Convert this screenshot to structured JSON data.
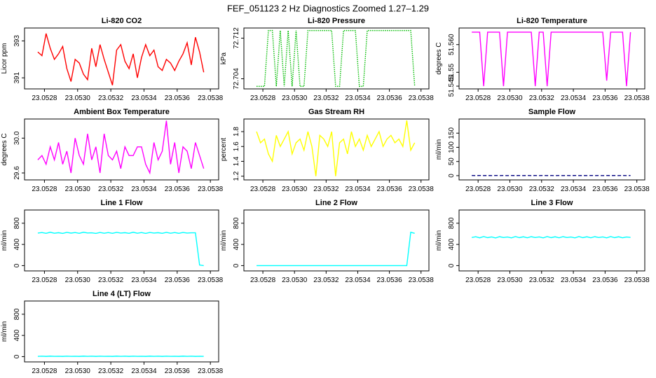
{
  "title": "FEF_051123  2 Hz Diagnostics Zoomed 1.27–1.29",
  "chart_data": [
    {
      "type": "line",
      "title": "Li-820 CO2",
      "y_label": "Licor ppm",
      "color": "#ff0000",
      "x": [
        23.05276,
        23.052785,
        23.05281,
        23.052835,
        23.05286,
        23.052885,
        23.05291,
        23.052935,
        23.05296,
        23.052985,
        23.05301,
        23.053035,
        23.05306,
        23.053085,
        23.05311,
        23.053135,
        23.05316,
        23.053185,
        23.05321,
        23.053235,
        23.05326,
        23.053285,
        23.05331,
        23.053335,
        23.05336,
        23.053385,
        23.05341,
        23.053435,
        23.05346,
        23.053485,
        23.05351,
        23.053535,
        23.05356,
        23.053585,
        23.05361,
        23.053635,
        23.05366,
        23.053685,
        23.05371,
        23.053735,
        23.05376
      ],
      "values": [
        392.4,
        392.2,
        393.4,
        392.6,
        392.0,
        392.3,
        392.7,
        391.5,
        390.8,
        392.0,
        391.8,
        391.2,
        390.9,
        392.6,
        391.6,
        392.8,
        392.0,
        391.3,
        390.6,
        392.5,
        392.8,
        391.9,
        391.5,
        392.3,
        391.0,
        392.1,
        392.8,
        392.2,
        392.5,
        391.6,
        391.4,
        392.0,
        391.8,
        391.4,
        391.9,
        392.3,
        392.9,
        391.7,
        393.2,
        392.4,
        391.3
      ],
      "xlim": [
        23.05268,
        23.05385
      ],
      "ylim": [
        390.4,
        393.7
      ],
      "xticks": [
        23.0528,
        {
          "value": 23.053,
          "label": "23.0530"
        },
        23.0532,
        23.0534,
        23.0536,
        23.0538
      ],
      "yticks": [
        391,
        393
      ]
    },
    {
      "type": "line",
      "title": "Li-820 Pressure",
      "y_label": "kPa",
      "color": "#00bb00",
      "linestyle": "dotted",
      "x": [
        23.05276,
        23.052785,
        23.05281,
        23.052835,
        23.05286,
        23.052885,
        23.05291,
        23.052935,
        23.05296,
        23.052985,
        23.05301,
        23.053035,
        23.05306,
        23.053085,
        23.05311,
        23.053135,
        23.05316,
        23.053185,
        23.05321,
        23.053235,
        23.05326,
        23.053285,
        23.05331,
        23.053335,
        23.05336,
        23.053385,
        23.05341,
        23.053435,
        23.05346,
        23.053485,
        23.05351,
        23.053535,
        23.05356,
        23.053585,
        23.05361,
        23.053635,
        23.05366,
        23.053685,
        23.05371,
        23.053735,
        23.05376
      ],
      "values": [
        72.7025,
        72.7025,
        72.7025,
        72.7135,
        72.7135,
        72.7025,
        72.7135,
        72.7025,
        72.7135,
        72.7025,
        72.7135,
        72.7025,
        72.7025,
        72.7135,
        72.7135,
        72.7135,
        72.7135,
        72.7135,
        72.7135,
        72.7135,
        72.7025,
        72.7025,
        72.7135,
        72.7135,
        72.7135,
        72.7135,
        72.7025,
        72.7025,
        72.7135,
        72.7135,
        72.7135,
        72.7135,
        72.7135,
        72.7135,
        72.7135,
        72.7135,
        72.7135,
        72.7135,
        72.7135,
        72.7135,
        72.7025
      ],
      "xlim": [
        23.05268,
        23.05385
      ],
      "ylim": [
        72.702,
        72.714
      ],
      "xticks": [
        23.0528,
        {
          "value": 23.053,
          "label": "23.0530"
        },
        23.0532,
        23.0534,
        23.0536,
        23.0538
      ],
      "yticks": [
        72.704,
        72.712
      ]
    },
    {
      "type": "line",
      "title": "Li-820 Temperature",
      "y_label": "degrees C",
      "color": "#ff00ff",
      "x": [
        23.05276,
        23.052785,
        23.05281,
        23.052835,
        23.05286,
        23.052885,
        23.05291,
        23.052935,
        23.05296,
        23.052985,
        23.05301,
        23.053035,
        23.05306,
        23.053085,
        23.05311,
        23.053135,
        23.05316,
        23.053185,
        23.05321,
        23.053235,
        23.05326,
        23.053285,
        23.05331,
        23.053335,
        23.05336,
        23.053385,
        23.05341,
        23.053435,
        23.05346,
        23.053485,
        23.05351,
        23.053535,
        23.05356,
        23.053585,
        23.05361,
        23.053635,
        23.05366,
        23.053685,
        23.05371,
        23.053735,
        23.05376
      ],
      "values": [
        51.5645,
        51.5645,
        51.5645,
        51.545,
        51.5645,
        51.5645,
        51.5645,
        51.5645,
        51.545,
        51.5645,
        51.5645,
        51.5645,
        51.5645,
        51.5645,
        51.5645,
        51.5645,
        51.545,
        51.5645,
        51.5645,
        51.545,
        51.5645,
        51.5645,
        51.5645,
        51.5645,
        51.5645,
        51.5645,
        51.5645,
        51.5645,
        51.5645,
        51.5645,
        51.5645,
        51.5645,
        51.5645,
        51.5645,
        51.547,
        51.5645,
        51.5645,
        51.5645,
        51.5645,
        51.545,
        51.5645
      ],
      "xlim": [
        23.05268,
        23.05385
      ],
      "ylim": [
        51.544,
        51.566
      ],
      "xticks": [
        23.0528,
        {
          "value": 23.053,
          "label": "23.0530"
        },
        23.0532,
        23.0534,
        23.0536,
        23.0538
      ],
      "yticks": [
        51.545,
        51.55,
        {
          "value": 51.56,
          "label": "51.560"
        }
      ]
    },
    {
      "type": "line",
      "title": "Ambient Box Temperature",
      "y_label": "degrees C",
      "color": "#ff00ff",
      "x": [
        23.05276,
        23.052785,
        23.05281,
        23.052835,
        23.05286,
        23.052885,
        23.05291,
        23.052935,
        23.05296,
        23.052985,
        23.05301,
        23.053035,
        23.05306,
        23.053085,
        23.05311,
        23.053135,
        23.05316,
        23.053185,
        23.05321,
        23.053235,
        23.05326,
        23.053285,
        23.05331,
        23.053335,
        23.05336,
        23.053385,
        23.05341,
        23.053435,
        23.05346,
        23.053485,
        23.05351,
        23.053535,
        23.05356,
        23.053585,
        23.05361,
        23.053635,
        23.05366,
        23.053685,
        23.05371,
        23.053735,
        23.05376
      ],
      "values": [
        29.75,
        29.8,
        29.7,
        29.9,
        29.75,
        29.95,
        29.7,
        29.85,
        29.6,
        30.0,
        29.8,
        29.7,
        30.05,
        29.75,
        29.9,
        29.6,
        30.05,
        29.8,
        29.75,
        29.85,
        29.65,
        29.9,
        29.8,
        29.8,
        29.9,
        29.9,
        29.7,
        29.6,
        29.95,
        29.75,
        29.85,
        30.2,
        29.7,
        29.95,
        29.6,
        29.9,
        29.85,
        29.65,
        29.95,
        29.8,
        29.65
      ],
      "xlim": [
        23.05268,
        23.05385
      ],
      "ylim": [
        29.52,
        30.22
      ],
      "xticks": [
        23.0528,
        {
          "value": 23.053,
          "label": "23.0530"
        },
        23.0532,
        23.0534,
        23.0536,
        23.0538
      ],
      "yticks": [
        29.6,
        {
          "value": 30,
          "label": "30.0"
        }
      ]
    },
    {
      "type": "line",
      "title": "Gas Stream RH",
      "y_label": "percent",
      "color": "#ffff00",
      "x": [
        23.05276,
        23.052785,
        23.05281,
        23.052835,
        23.05286,
        23.052885,
        23.05291,
        23.052935,
        23.05296,
        23.052985,
        23.05301,
        23.053035,
        23.05306,
        23.053085,
        23.05311,
        23.053135,
        23.05316,
        23.053185,
        23.05321,
        23.053235,
        23.05326,
        23.053285,
        23.05331,
        23.053335,
        23.05336,
        23.053385,
        23.05341,
        23.053435,
        23.05346,
        23.053485,
        23.05351,
        23.053535,
        23.05356,
        23.053585,
        23.05361,
        23.053635,
        23.05366,
        23.053685,
        23.05371,
        23.053735,
        23.05376
      ],
      "values": [
        1.8,
        1.65,
        1.7,
        1.5,
        1.4,
        1.75,
        1.6,
        1.7,
        1.8,
        1.5,
        1.65,
        1.7,
        1.55,
        1.8,
        1.6,
        1.2,
        1.75,
        1.7,
        1.6,
        1.8,
        1.2,
        1.65,
        1.7,
        1.5,
        1.8,
        1.6,
        1.7,
        1.55,
        1.75,
        1.6,
        1.7,
        1.8,
        1.6,
        1.7,
        1.75,
        1.65,
        1.7,
        1.6,
        1.95,
        1.55,
        1.65
      ],
      "xlim": [
        23.05268,
        23.05385
      ],
      "ylim": [
        1.15,
        1.97
      ],
      "xticks": [
        23.0528,
        {
          "value": 23.053,
          "label": "23.0530"
        },
        23.0532,
        23.0534,
        23.0536,
        23.0538
      ],
      "yticks": [
        1.2,
        1.4,
        1.6,
        1.8
      ]
    },
    {
      "type": "line",
      "title": "Sample Flow",
      "y_label": "ml/min",
      "color": "#000080",
      "linestyle": "dashed",
      "x": [
        23.05276,
        23.052785,
        23.05281,
        23.052835,
        23.05286,
        23.052885,
        23.05291,
        23.052935,
        23.05296,
        23.052985,
        23.05301,
        23.053035,
        23.05306,
        23.053085,
        23.05311,
        23.053135,
        23.05316,
        23.053185,
        23.05321,
        23.053235,
        23.05326,
        23.053285,
        23.05331,
        23.053335,
        23.05336,
        23.053385,
        23.05341,
        23.053435,
        23.05346,
        23.053485,
        23.05351,
        23.053535,
        23.05356,
        23.053585,
        23.05361,
        23.053635,
        23.05366,
        23.053685,
        23.05371,
        23.053735,
        23.05376
      ],
      "values": [
        0.5,
        0.3,
        0.6,
        0.4,
        0.5,
        0.3,
        0.6,
        0.4,
        0.5,
        0.3,
        0.6,
        0.4,
        0.5,
        0.3,
        0.6,
        0.4,
        0.5,
        0.3,
        0.6,
        0.4,
        0.5,
        0.3,
        0.6,
        0.4,
        0.5,
        0.3,
        0.6,
        0.4,
        0.5,
        0.3,
        0.6,
        0.4,
        0.5,
        0.3,
        0.6,
        0.4,
        0.5,
        0.3,
        0.6,
        0.4,
        0.5
      ],
      "xlim": [
        23.05268,
        23.05385
      ],
      "ylim": [
        -15,
        200
      ],
      "xticks": [
        23.0528,
        {
          "value": 23.053,
          "label": "23.0530"
        },
        23.0532,
        23.0534,
        23.0536,
        23.0538
      ],
      "yticks": [
        0,
        50,
        100,
        150
      ]
    },
    {
      "type": "line",
      "title": "Line 1 Flow",
      "y_label": "ml/min",
      "color": "#00ffff",
      "x": [
        23.05276,
        23.052785,
        23.05281,
        23.052835,
        23.05286,
        23.052885,
        23.05291,
        23.052935,
        23.05296,
        23.052985,
        23.05301,
        23.053035,
        23.05306,
        23.053085,
        23.05311,
        23.053135,
        23.05316,
        23.053185,
        23.05321,
        23.053235,
        23.05326,
        23.053285,
        23.05331,
        23.053335,
        23.05336,
        23.053385,
        23.05341,
        23.053435,
        23.05346,
        23.053485,
        23.05351,
        23.053535,
        23.05356,
        23.053585,
        23.05361,
        23.053635,
        23.05366,
        23.053685,
        23.05371,
        23.053735,
        23.05376
      ],
      "values": [
        615,
        625,
        610,
        630,
        612,
        622,
        608,
        628,
        614,
        624,
        610,
        630,
        616,
        620,
        608,
        626,
        612,
        624,
        610,
        628,
        614,
        622,
        610,
        630,
        612,
        624,
        608,
        626,
        614,
        622,
        610,
        628,
        612,
        624,
        610,
        626,
        614,
        620,
        620,
        10,
        0
      ],
      "xlim": [
        23.05268,
        23.05385
      ],
      "ylim": [
        -100,
        1050
      ],
      "xticks": [
        23.0528,
        {
          "value": 23.053,
          "label": "23.0530"
        },
        23.0532,
        23.0534,
        23.0536,
        23.0538
      ],
      "yticks": [
        0,
        400,
        800
      ]
    },
    {
      "type": "line",
      "title": "Line 2 Flow",
      "y_label": "ml/min",
      "color": "#00ffff",
      "x": [
        23.05276,
        23.052785,
        23.05281,
        23.052835,
        23.05286,
        23.052885,
        23.05291,
        23.052935,
        23.05296,
        23.052985,
        23.05301,
        23.053035,
        23.05306,
        23.053085,
        23.05311,
        23.053135,
        23.05316,
        23.053185,
        23.05321,
        23.053235,
        23.05326,
        23.053285,
        23.05331,
        23.053335,
        23.05336,
        23.053385,
        23.05341,
        23.053435,
        23.05346,
        23.053485,
        23.05351,
        23.053535,
        23.05356,
        23.053585,
        23.05361,
        23.053635,
        23.05366,
        23.053685,
        23.05371,
        23.053735,
        23.05376
      ],
      "values": [
        0,
        0,
        0,
        0,
        0,
        0,
        0,
        0,
        0,
        0,
        0,
        0,
        0,
        0,
        0,
        0,
        0,
        0,
        0,
        0,
        0,
        0,
        0,
        0,
        0,
        0,
        0,
        0,
        0,
        0,
        0,
        0,
        0,
        0,
        0,
        0,
        0,
        0,
        0,
        630,
        610
      ],
      "xlim": [
        23.05268,
        23.05385
      ],
      "ylim": [
        -100,
        1050
      ],
      "xticks": [
        23.0528,
        {
          "value": 23.053,
          "label": "23.0530"
        },
        23.0532,
        23.0534,
        23.0536,
        23.0538
      ],
      "yticks": [
        0,
        400,
        800
      ]
    },
    {
      "type": "line",
      "title": "Line 3 Flow",
      "y_label": "ml/min",
      "color": "#00ffff",
      "x": [
        23.05276,
        23.052785,
        23.05281,
        23.052835,
        23.05286,
        23.052885,
        23.05291,
        23.052935,
        23.05296,
        23.052985,
        23.05301,
        23.053035,
        23.05306,
        23.053085,
        23.05311,
        23.053135,
        23.05316,
        23.053185,
        23.05321,
        23.053235,
        23.05326,
        23.053285,
        23.05331,
        23.053335,
        23.05336,
        23.053385,
        23.05341,
        23.053435,
        23.05346,
        23.053485,
        23.05351,
        23.053535,
        23.05356,
        23.053585,
        23.05361,
        23.053635,
        23.05366,
        23.053685,
        23.05371,
        23.053735,
        23.05376
      ],
      "values": [
        530,
        545,
        525,
        548,
        528,
        542,
        522,
        546,
        530,
        540,
        524,
        548,
        528,
        544,
        526,
        546,
        530,
        542,
        524,
        548,
        528,
        544,
        526,
        546,
        530,
        540,
        524,
        548,
        528,
        544,
        526,
        546,
        530,
        542,
        524,
        548,
        528,
        544,
        526,
        540,
        532
      ],
      "xlim": [
        23.05268,
        23.05385
      ],
      "ylim": [
        -100,
        1050
      ],
      "xticks": [
        23.0528,
        {
          "value": 23.053,
          "label": "23.0530"
        },
        23.0532,
        23.0534,
        23.0536,
        23.0538
      ],
      "yticks": [
        0,
        400,
        800
      ]
    },
    {
      "type": "line",
      "title": "Line 4 (LT) Flow",
      "y_label": "ml/min",
      "color": "#00ffff",
      "x": [
        23.05276,
        23.052785,
        23.05281,
        23.052835,
        23.05286,
        23.052885,
        23.05291,
        23.052935,
        23.05296,
        23.052985,
        23.05301,
        23.053035,
        23.05306,
        23.053085,
        23.05311,
        23.053135,
        23.05316,
        23.053185,
        23.05321,
        23.053235,
        23.05326,
        23.053285,
        23.05331,
        23.053335,
        23.05336,
        23.053385,
        23.05341,
        23.053435,
        23.05346,
        23.053485,
        23.05351,
        23.053535,
        23.05356,
        23.053585,
        23.05361,
        23.053635,
        23.05366,
        23.053685,
        23.05371,
        23.053735,
        23.05376
      ],
      "values": [
        5,
        8,
        4,
        9,
        5,
        7,
        4,
        8,
        5,
        7,
        4,
        9,
        5,
        8,
        4,
        8,
        5,
        7,
        4,
        9,
        5,
        8,
        4,
        8,
        5,
        7,
        4,
        9,
        5,
        8,
        4,
        8,
        5,
        7,
        4,
        9,
        5,
        8,
        4,
        7,
        5
      ],
      "xlim": [
        23.05268,
        23.05385
      ],
      "ylim": [
        -100,
        1050
      ],
      "xticks": [
        23.0528,
        {
          "value": 23.053,
          "label": "23.0530"
        },
        23.0532,
        23.0534,
        23.0536,
        23.0538
      ],
      "yticks": [
        0,
        400,
        800
      ]
    }
  ]
}
